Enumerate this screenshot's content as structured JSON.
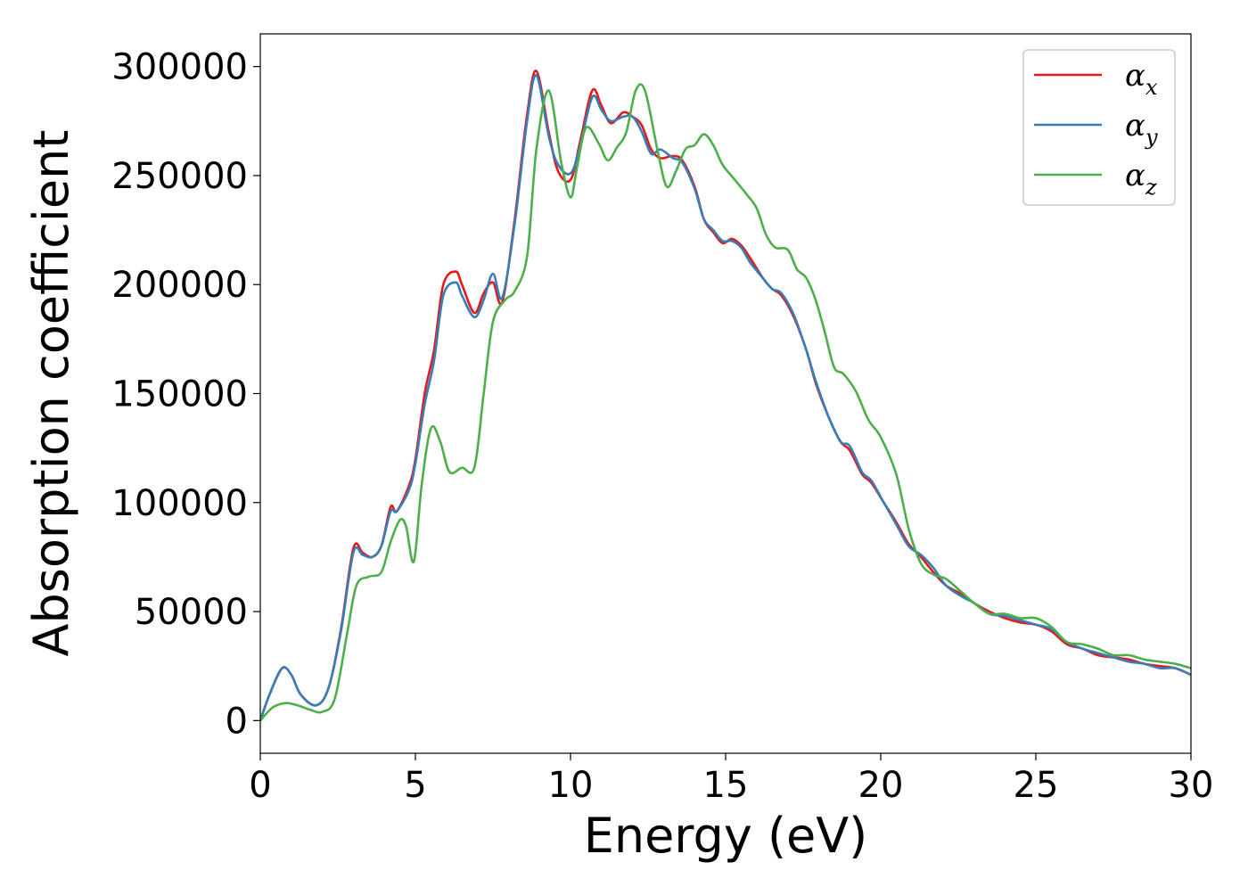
{
  "chart_data": {
    "type": "line",
    "title": "",
    "xlabel": "Energy (eV)",
    "ylabel": "Absorption coefficient",
    "xlim": [
      0,
      30
    ],
    "ylim": [
      -15000,
      315000
    ],
    "xticks": [
      0,
      5,
      10,
      15,
      20,
      25,
      30
    ],
    "yticks": [
      0,
      50000,
      100000,
      150000,
      200000,
      250000,
      300000
    ],
    "xtick_labels": [
      "0",
      "5",
      "10",
      "15",
      "20",
      "25",
      "30"
    ],
    "ytick_labels": [
      "0",
      "50000",
      "100000",
      "150000",
      "200000",
      "250000",
      "300000"
    ],
    "grid": false,
    "legend_position": "top-right",
    "legend": [
      {
        "symbol": "α",
        "subscript": "x"
      },
      {
        "symbol": "α",
        "subscript": "y"
      },
      {
        "symbol": "α",
        "subscript": "z"
      }
    ],
    "series": [
      {
        "color": "#e41a1c",
        "x": [
          0,
          0.3,
          0.7,
          1.0,
          1.3,
          1.8,
          2.2,
          2.6,
          3.0,
          3.3,
          3.6,
          3.9,
          4.2,
          4.4,
          4.8,
          5.0,
          5.3,
          5.6,
          5.9,
          6.3,
          6.5,
          6.9,
          7.2,
          7.5,
          7.8,
          8.2,
          8.6,
          8.9,
          9.3,
          9.6,
          10.0,
          10.3,
          10.7,
          11.0,
          11.3,
          11.7,
          12.0,
          12.3,
          12.6,
          12.9,
          13.3,
          13.6,
          14.0,
          14.3,
          14.6,
          14.9,
          15.2,
          15.5,
          15.8,
          16.2,
          16.5,
          16.8,
          17.2,
          17.6,
          17.9,
          18.3,
          18.7,
          19.0,
          19.4,
          19.7,
          20.1,
          20.5,
          20.9,
          21.3,
          21.7,
          22.1,
          22.6,
          23.0,
          23.5,
          24.0,
          24.5,
          25.0,
          25.5,
          26.0,
          26.5,
          27.0,
          27.5,
          28.0,
          28.5,
          29.0,
          29.5,
          30.0
        ],
        "y": [
          0,
          12000,
          24000,
          21000,
          12000,
          7000,
          15000,
          42000,
          79000,
          77000,
          75000,
          80000,
          98000,
          96000,
          108000,
          120000,
          150000,
          170000,
          200000,
          206000,
          200000,
          187000,
          196000,
          201000,
          192000,
          230000,
          278000,
          298000,
          270000,
          252000,
          248000,
          265000,
          289000,
          282000,
          274000,
          279000,
          277000,
          273000,
          262000,
          258000,
          259000,
          257000,
          245000,
          230000,
          224000,
          219000,
          221000,
          218000,
          212000,
          203000,
          198000,
          195000,
          185000,
          170000,
          155000,
          140000,
          128000,
          124000,
          113000,
          109000,
          100000,
          91000,
          81000,
          75000,
          68000,
          62000,
          58000,
          54000,
          50000,
          47000,
          45000,
          44000,
          41000,
          35000,
          33000,
          30000,
          29000,
          28000,
          26000,
          25000,
          24000,
          21000
        ]
      },
      {
        "color": "#377eb8",
        "x": [
          0,
          0.3,
          0.7,
          1.0,
          1.3,
          1.8,
          2.2,
          2.6,
          3.0,
          3.3,
          3.6,
          3.9,
          4.2,
          4.4,
          4.8,
          5.0,
          5.3,
          5.6,
          5.9,
          6.3,
          6.5,
          6.9,
          7.2,
          7.5,
          7.8,
          8.2,
          8.6,
          8.9,
          9.3,
          9.6,
          10.0,
          10.3,
          10.7,
          11.0,
          11.3,
          11.7,
          12.0,
          12.3,
          12.6,
          12.9,
          13.3,
          13.6,
          14.0,
          14.3,
          14.6,
          14.9,
          15.2,
          15.5,
          15.8,
          16.2,
          16.5,
          16.8,
          17.2,
          17.6,
          17.9,
          18.3,
          18.7,
          19.0,
          19.4,
          19.7,
          20.1,
          20.5,
          20.9,
          21.3,
          21.7,
          22.1,
          22.6,
          23.0,
          23.5,
          24.0,
          24.5,
          25.0,
          25.5,
          26.0,
          26.5,
          27.0,
          27.5,
          28.0,
          28.5,
          29.0,
          29.5,
          30.0
        ],
        "y": [
          0,
          12000,
          24000,
          21000,
          12000,
          7000,
          15000,
          41000,
          77000,
          76000,
          75000,
          80000,
          96000,
          96000,
          106000,
          118000,
          145000,
          165000,
          195000,
          201000,
          195000,
          185000,
          193000,
          205000,
          194000,
          228000,
          275000,
          296000,
          268000,
          255000,
          251000,
          263000,
          286000,
          280000,
          275000,
          277000,
          277000,
          270000,
          260000,
          262000,
          258000,
          256000,
          244000,
          230000,
          225000,
          220000,
          220000,
          217000,
          210000,
          203000,
          198000,
          196000,
          186000,
          170000,
          156000,
          140000,
          128000,
          126000,
          114000,
          110000,
          100000,
          90000,
          80000,
          76000,
          70000,
          62000,
          57000,
          54000,
          49000,
          48000,
          46000,
          44000,
          42000,
          36000,
          33000,
          31000,
          29000,
          27000,
          26000,
          24000,
          24000,
          21000
        ]
      },
      {
        "color": "#4daf4a",
        "x": [
          0,
          0.4,
          0.8,
          1.2,
          1.6,
          2.0,
          2.4,
          2.8,
          3.1,
          3.5,
          3.9,
          4.2,
          4.5,
          4.7,
          4.95,
          5.2,
          5.5,
          5.8,
          6.1,
          6.5,
          6.9,
          7.2,
          7.5,
          7.9,
          8.2,
          8.6,
          8.9,
          9.3,
          9.7,
          10.0,
          10.2,
          10.5,
          10.9,
          11.2,
          11.5,
          11.8,
          12.1,
          12.4,
          12.8,
          13.1,
          13.4,
          13.7,
          14.0,
          14.3,
          14.6,
          14.9,
          15.3,
          15.7,
          16.0,
          16.3,
          16.6,
          17.0,
          17.3,
          17.6,
          17.9,
          18.2,
          18.5,
          18.8,
          19.2,
          19.6,
          20.0,
          20.5,
          20.9,
          21.3,
          21.7,
          22.1,
          22.6,
          23.0,
          23.5,
          24.0,
          24.5,
          25.0,
          25.5,
          26.0,
          26.5,
          27.0,
          27.5,
          28.0,
          28.5,
          29.0,
          29.5,
          30.0
        ],
        "y": [
          0,
          6000,
          8000,
          7000,
          5000,
          4000,
          10000,
          40000,
          62000,
          66000,
          68000,
          82000,
          92000,
          89000,
          73000,
          108000,
          134000,
          128000,
          114000,
          116000,
          116000,
          150000,
          183000,
          193000,
          197000,
          213000,
          262000,
          289000,
          256000,
          240000,
          253000,
          272000,
          265000,
          257000,
          263000,
          270000,
          289000,
          289000,
          262000,
          245000,
          252000,
          262000,
          264000,
          269000,
          264000,
          255000,
          248000,
          241000,
          235000,
          223000,
          217000,
          216000,
          207000,
          203000,
          193000,
          178000,
          162000,
          159000,
          151000,
          138000,
          130000,
          113000,
          88000,
          72000,
          67000,
          65000,
          59000,
          54000,
          49000,
          49000,
          47000,
          47000,
          43000,
          36000,
          35000,
          33000,
          30000,
          30000,
          28000,
          27000,
          26000,
          24000
        ]
      }
    ]
  }
}
